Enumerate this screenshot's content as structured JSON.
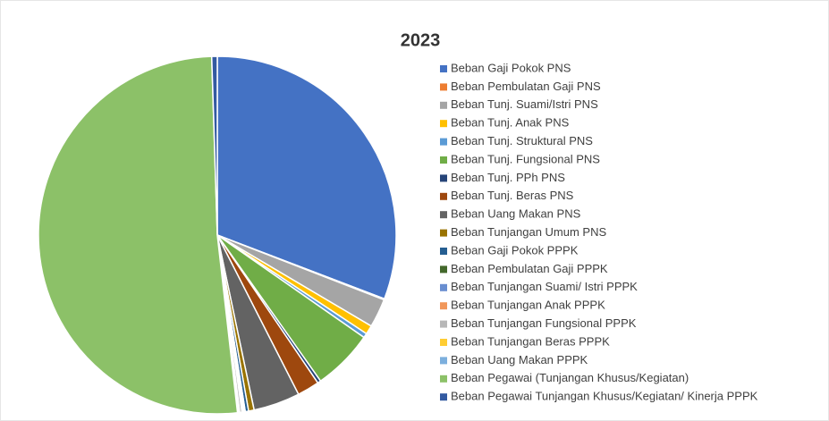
{
  "chart_data": {
    "type": "pie",
    "title": "2023",
    "categories": [
      "Beban Gaji Pokok PNS",
      "Beban Pembulatan Gaji PNS",
      "Beban Tunj. Suami/Istri PNS",
      "Beban Tunj. Anak PNS",
      "Beban Tunj. Struktural PNS",
      "Beban Tunj. Fungsional PNS",
      "Beban Tunj. PPh PNS",
      "Beban Tunj. Beras PNS",
      "Beban Uang Makan PNS",
      "Beban Tunjangan Umum PNS",
      "Beban Gaji Pokok PPPK",
      "Beban Pembulatan Gaji PPPK",
      "Beban Tunjangan Suami/ Istri PPPK",
      "Beban Tunjangan Anak PPPK",
      "Beban Tunjangan Fungsional PPPK",
      "Beban Tunjangan Beras PPPK",
      "Beban Uang Makan PPPK",
      "Beban Pegawai (Tunjangan Khusus/Kegiatan)",
      "Beban Pegawai Tunjangan Khusus/Kegiatan/ Kinerja PPPK"
    ],
    "values": [
      30.8,
      0.1,
      2.6,
      0.8,
      0.4,
      5.5,
      0.3,
      2.0,
      4.2,
      0.5,
      0.3,
      0.1,
      0.1,
      0.1,
      0.2,
      0.1,
      0.1,
      51.3,
      0.5
    ],
    "colors": [
      "#4472c4",
      "#ed7d31",
      "#a5a5a5",
      "#ffc000",
      "#5b9bd5",
      "#70ad47",
      "#264478",
      "#9e480e",
      "#636363",
      "#997300",
      "#255e91",
      "#43682b",
      "#698ed0",
      "#f1975a",
      "#b7b7b7",
      "#ffcd33",
      "#7cafdd",
      "#8cc168",
      "#335aa1"
    ],
    "legend": "right"
  }
}
